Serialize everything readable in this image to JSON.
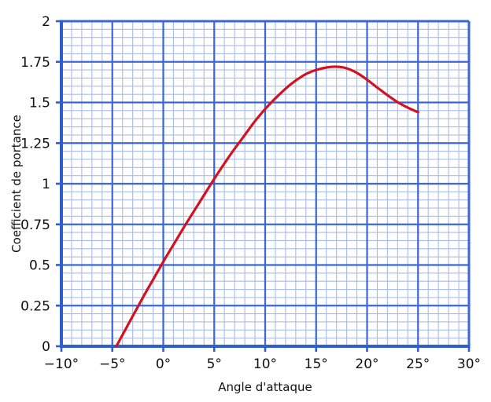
{
  "chart_data": {
    "type": "line",
    "title": "",
    "xlabel": "Angle d'attaque",
    "ylabel": "Coefficient de portance",
    "xlim": [
      -10,
      30
    ],
    "ylim": [
      0,
      2
    ],
    "x_major_step": 5,
    "x_minor_step": 1,
    "y_major_step": 0.25,
    "y_minor_step": 0.05,
    "x_ticks": [
      -10,
      -5,
      0,
      5,
      10,
      15,
      20,
      25,
      30
    ],
    "x_tick_labels": [
      "−10°",
      "−5°",
      "0°",
      "5°",
      "10°",
      "15°",
      "20°",
      "25°",
      "30°"
    ],
    "y_ticks": [
      0,
      0.25,
      0.5,
      0.75,
      1,
      1.25,
      1.5,
      1.75,
      2
    ],
    "y_tick_labels": [
      "0",
      "0.25",
      "0.5",
      "0.75",
      "1",
      "1.25",
      "1.5",
      "1.75",
      "2"
    ],
    "grid": true,
    "legend_position": "none",
    "series": [
      {
        "name": "Coefficient de portance",
        "color": "#d4111e",
        "points": [
          [
            -4.6,
            0.0
          ],
          [
            -4,
            0.07
          ],
          [
            -3,
            0.185
          ],
          [
            -2,
            0.3
          ],
          [
            -1,
            0.41
          ],
          [
            0,
            0.52
          ],
          [
            1,
            0.625
          ],
          [
            2,
            0.73
          ],
          [
            3,
            0.83
          ],
          [
            4,
            0.93
          ],
          [
            5,
            1.03
          ],
          [
            6,
            1.125
          ],
          [
            7,
            1.215
          ],
          [
            8,
            1.3
          ],
          [
            9,
            1.385
          ],
          [
            10,
            1.46
          ],
          [
            11,
            1.525
          ],
          [
            12,
            1.585
          ],
          [
            13,
            1.635
          ],
          [
            14,
            1.675
          ],
          [
            15,
            1.7
          ],
          [
            16,
            1.715
          ],
          [
            17,
            1.72
          ],
          [
            18,
            1.71
          ],
          [
            19,
            1.682
          ],
          [
            20,
            1.64
          ],
          [
            21,
            1.592
          ],
          [
            22,
            1.545
          ],
          [
            23,
            1.502
          ],
          [
            24,
            1.468
          ],
          [
            25,
            1.44
          ]
        ]
      }
    ],
    "colors": {
      "grid_major": "#3b66d9",
      "grid_minor": "#a9bce9",
      "axis_frame": "#2f5ecf",
      "curve": "#d4111e",
      "text": "#111111"
    }
  }
}
